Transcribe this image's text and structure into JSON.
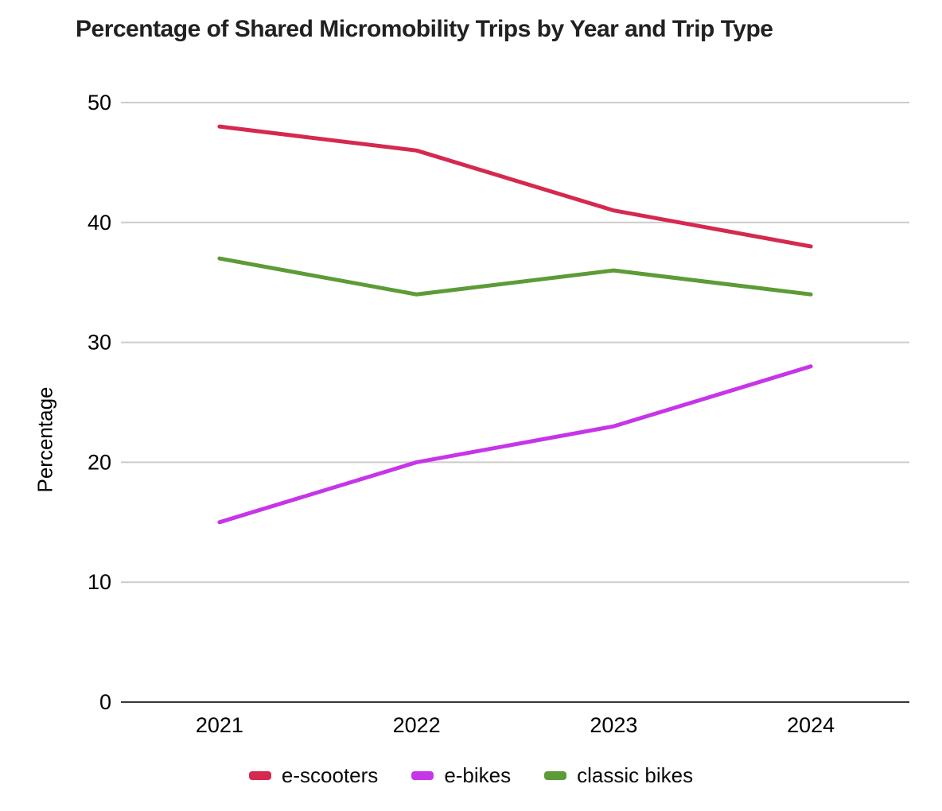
{
  "chart": {
    "title": "Percentage of Shared Micromobility Trips by Year and Trip Type",
    "ylabel": "Percentage"
  },
  "chart_data": {
    "type": "line",
    "title": "Percentage of Shared Micromobility Trips by Year and Trip Type",
    "xlabel": "",
    "ylabel": "Percentage",
    "categories": [
      "2021",
      "2022",
      "2023",
      "2024"
    ],
    "series": [
      {
        "name": "e-scooters",
        "color": "#d5294f",
        "values": [
          48,
          46,
          41,
          38
        ]
      },
      {
        "name": "e-bikes",
        "color": "#c735e8",
        "values": [
          15,
          20,
          23,
          28
        ]
      },
      {
        "name": "classic bikes",
        "color": "#5d9b37",
        "values": [
          37,
          34,
          36,
          34
        ]
      }
    ],
    "ylim": [
      0,
      50
    ],
    "yticks": [
      0,
      10,
      20,
      30,
      40,
      50
    ],
    "grid": true,
    "legend_position": "bottom",
    "colors": {
      "gridline": "#cccccc",
      "axis_line": "#383838",
      "tick_text": "#000000",
      "title_text": "#212121"
    }
  }
}
